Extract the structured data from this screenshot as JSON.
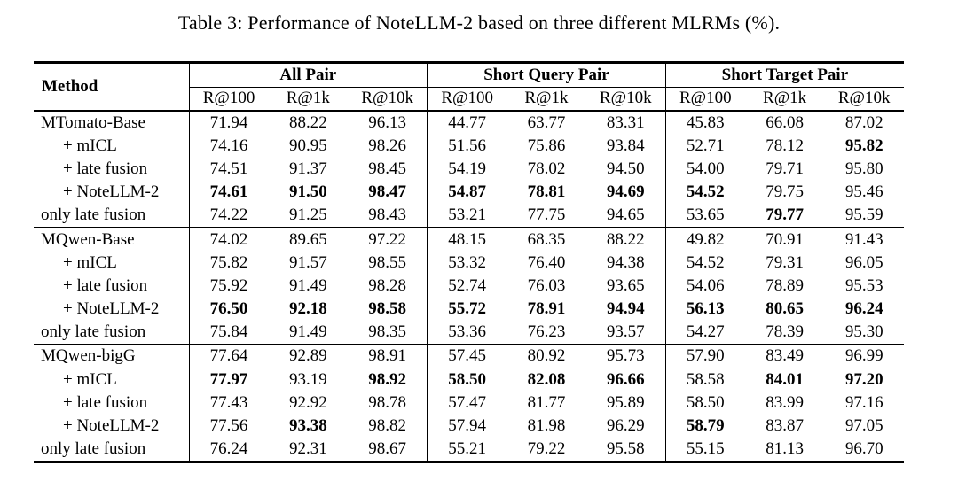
{
  "caption": "Table 3: Performance of NoteLLM-2 based on three different MLRMs (%).",
  "table": {
    "method_header": "Method",
    "group_headers": [
      "All Pair",
      "Short Query Pair",
      "Short Target Pair"
    ],
    "metric_headers": [
      "R@100",
      "R@1k",
      "R@10k"
    ],
    "blocks": [
      {
        "rows": [
          {
            "method": "MTomato-Base",
            "values": [
              "71.94",
              "88.22",
              "96.13",
              "44.77",
              "63.77",
              "83.31",
              "45.83",
              "66.08",
              "87.02"
            ],
            "bold": [
              false,
              false,
              false,
              false,
              false,
              false,
              false,
              false,
              false
            ]
          },
          {
            "method": "+ mICL",
            "values": [
              "74.16",
              "90.95",
              "98.26",
              "51.56",
              "75.86",
              "93.84",
              "52.71",
              "78.12",
              "95.82"
            ],
            "bold": [
              false,
              false,
              false,
              false,
              false,
              false,
              false,
              false,
              true
            ]
          },
          {
            "method": "+ late fusion",
            "values": [
              "74.51",
              "91.37",
              "98.45",
              "54.19",
              "78.02",
              "94.50",
              "54.00",
              "79.71",
              "95.80"
            ],
            "bold": [
              false,
              false,
              false,
              false,
              false,
              false,
              false,
              false,
              false
            ]
          },
          {
            "method": "+ NoteLLM-2",
            "values": [
              "74.61",
              "91.50",
              "98.47",
              "54.87",
              "78.81",
              "94.69",
              "54.52",
              "79.75",
              "95.46"
            ],
            "bold": [
              true,
              true,
              true,
              true,
              true,
              true,
              true,
              false,
              false
            ]
          },
          {
            "method": "only late fusion",
            "values": [
              "74.22",
              "91.25",
              "98.43",
              "53.21",
              "77.75",
              "94.65",
              "53.65",
              "79.77",
              "95.59"
            ],
            "bold": [
              false,
              false,
              false,
              false,
              false,
              false,
              false,
              true,
              false
            ]
          }
        ]
      },
      {
        "rows": [
          {
            "method": "MQwen-Base",
            "values": [
              "74.02",
              "89.65",
              "97.22",
              "48.15",
              "68.35",
              "88.22",
              "49.82",
              "70.91",
              "91.43"
            ],
            "bold": [
              false,
              false,
              false,
              false,
              false,
              false,
              false,
              false,
              false
            ]
          },
          {
            "method": "+ mICL",
            "values": [
              "75.82",
              "91.57",
              "98.55",
              "53.32",
              "76.40",
              "94.38",
              "54.52",
              "79.31",
              "96.05"
            ],
            "bold": [
              false,
              false,
              false,
              false,
              false,
              false,
              false,
              false,
              false
            ]
          },
          {
            "method": "+ late fusion",
            "values": [
              "75.92",
              "91.49",
              "98.28",
              "52.74",
              "76.03",
              "93.65",
              "54.06",
              "78.89",
              "95.53"
            ],
            "bold": [
              false,
              false,
              false,
              false,
              false,
              false,
              false,
              false,
              false
            ]
          },
          {
            "method": "+ NoteLLM-2",
            "values": [
              "76.50",
              "92.18",
              "98.58",
              "55.72",
              "78.91",
              "94.94",
              "56.13",
              "80.65",
              "96.24"
            ],
            "bold": [
              true,
              true,
              true,
              true,
              true,
              true,
              true,
              true,
              true
            ]
          },
          {
            "method": "only late fusion",
            "values": [
              "75.84",
              "91.49",
              "98.35",
              "53.36",
              "76.23",
              "93.57",
              "54.27",
              "78.39",
              "95.30"
            ],
            "bold": [
              false,
              false,
              false,
              false,
              false,
              false,
              false,
              false,
              false
            ]
          }
        ]
      },
      {
        "rows": [
          {
            "method": "MQwen-bigG",
            "values": [
              "77.64",
              "92.89",
              "98.91",
              "57.45",
              "80.92",
              "95.73",
              "57.90",
              "83.49",
              "96.99"
            ],
            "bold": [
              false,
              false,
              false,
              false,
              false,
              false,
              false,
              false,
              false
            ]
          },
          {
            "method": "+ mICL",
            "values": [
              "77.97",
              "93.19",
              "98.92",
              "58.50",
              "82.08",
              "96.66",
              "58.58",
              "84.01",
              "97.20"
            ],
            "bold": [
              true,
              false,
              true,
              true,
              true,
              true,
              false,
              true,
              true
            ]
          },
          {
            "method": "+ late fusion",
            "values": [
              "77.43",
              "92.92",
              "98.78",
              "57.47",
              "81.77",
              "95.89",
              "58.50",
              "83.99",
              "97.16"
            ],
            "bold": [
              false,
              false,
              false,
              false,
              false,
              false,
              false,
              false,
              false
            ]
          },
          {
            "method": "+ NoteLLM-2",
            "values": [
              "77.56",
              "93.38",
              "98.82",
              "57.94",
              "81.98",
              "96.29",
              "58.79",
              "83.87",
              "97.05"
            ],
            "bold": [
              false,
              true,
              false,
              false,
              false,
              false,
              true,
              false,
              false
            ]
          },
          {
            "method": "only late fusion",
            "values": [
              "76.24",
              "92.31",
              "98.67",
              "55.21",
              "79.22",
              "95.58",
              "55.15",
              "81.13",
              "96.70"
            ],
            "bold": [
              false,
              false,
              false,
              false,
              false,
              false,
              false,
              false,
              false
            ]
          }
        ]
      }
    ]
  }
}
